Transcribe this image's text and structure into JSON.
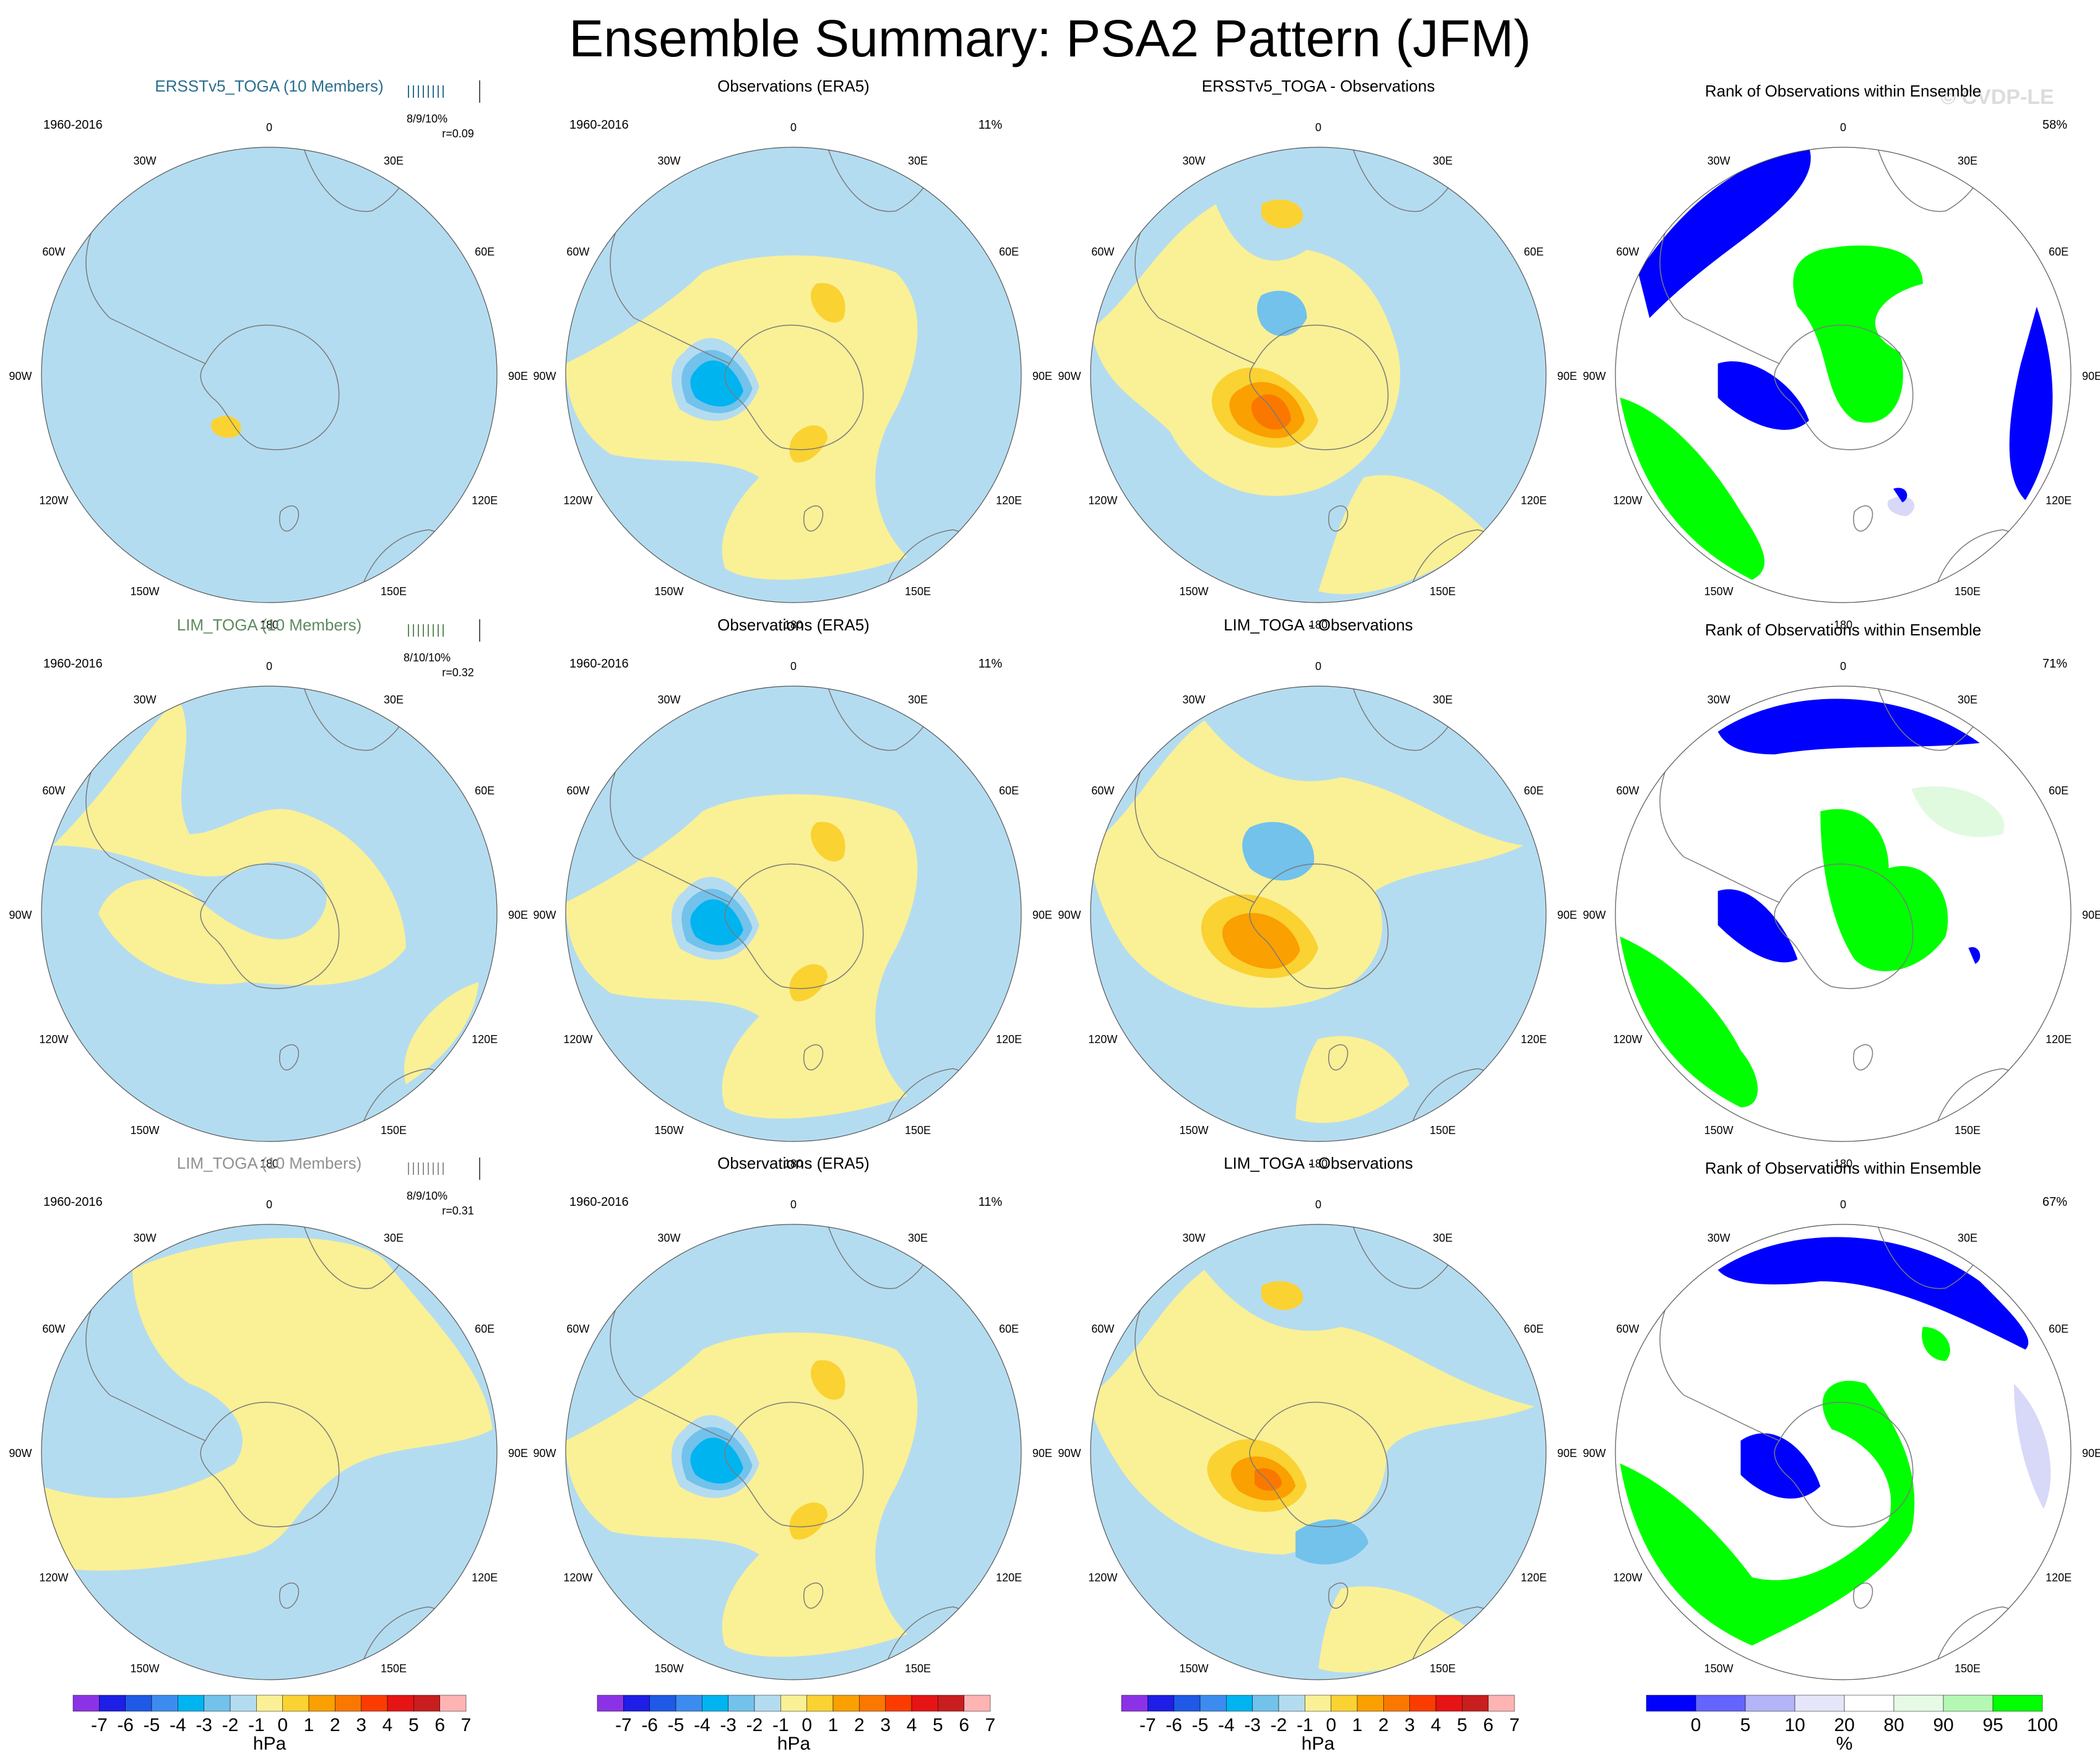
{
  "title": "Ensemble Summary: PSA2 Pattern (JFM)",
  "watermark": "© CVDP-LE",
  "colors": {
    "neg1": "#b4dcf0",
    "neg2": "#72c2ec",
    "neg3": "#00b4f0",
    "neg4": "#1e8ce6",
    "pos1": "#faf096",
    "pos2": "#fad232",
    "pos3": "#faa000",
    "pos4": "#fa7800",
    "rank_low": "#0000ff",
    "rank_lowmid": "#d8d8f8",
    "rank_highmid": "#e0fae0",
    "rank_high": "#00ff00",
    "coast": "#7a7a7a"
  },
  "map": {
    "period": "1960-2016",
    "lon_labels": [
      "0",
      "30E",
      "60E",
      "90E",
      "120E",
      "150E",
      "180",
      "150W",
      "120W",
      "90W",
      "60W",
      "30W"
    ]
  },
  "rows": [
    {
      "model_title": "ERSSTv5_TOGA (10 Members)",
      "model_color": "#2b6f8e",
      "stats": "8/9/10%",
      "r": "r=0.09",
      "obs_title": "Observations (ERA5)",
      "obs_pct": "11%",
      "diff_title": "ERSSTv5_TOGA - Observations",
      "rank_title": "Rank of Observations within Ensemble",
      "rank_pct": "58%"
    },
    {
      "model_title": "LIM_TOGA (10 Members)",
      "model_color": "#5e8a5e",
      "stats": "8/10/10%",
      "r": "r=0.32",
      "obs_title": "Observations (ERA5)",
      "obs_pct": "11%",
      "diff_title": "LIM_TOGA - Observations",
      "rank_title": "Rank of Observations within Ensemble",
      "rank_pct": "71%"
    },
    {
      "model_title": "LIM_TOGA (10 Members)",
      "model_color": "#909090",
      "stats": "8/9/10%",
      "r": "r=0.31",
      "obs_title": "Observations (ERA5)",
      "obs_pct": "11%",
      "diff_title": "LIM_TOGA - Observations",
      "rank_title": "Rank of Observations within Ensemble",
      "rank_pct": "67%"
    }
  ],
  "colorbar_hpa": {
    "colors": [
      "#8c32e6",
      "#1e1ee6",
      "#1e5ae6",
      "#3c8cf0",
      "#00b4f0",
      "#72c2ec",
      "#b4dcf0",
      "#faf096",
      "#fad232",
      "#faa000",
      "#fa7800",
      "#fa3c00",
      "#e61414",
      "#c81e1e",
      "#ffb4b4"
    ],
    "labels": [
      "-7",
      "-6",
      "-5",
      "-4",
      "-3",
      "-2",
      "-1",
      "0",
      "1",
      "2",
      "3",
      "4",
      "5",
      "6",
      "7"
    ],
    "units": "hPa"
  },
  "colorbar_rank": {
    "colors": [
      "#0000ff",
      "#6464ff",
      "#b4b4f8",
      "#e6e6fa",
      "#ffffff",
      "#e6fae6",
      "#b4f8b4",
      "#00ff00"
    ],
    "labels": [
      "0",
      "5",
      "10",
      "20",
      "80",
      "90",
      "95",
      "100"
    ],
    "units": "%"
  }
}
